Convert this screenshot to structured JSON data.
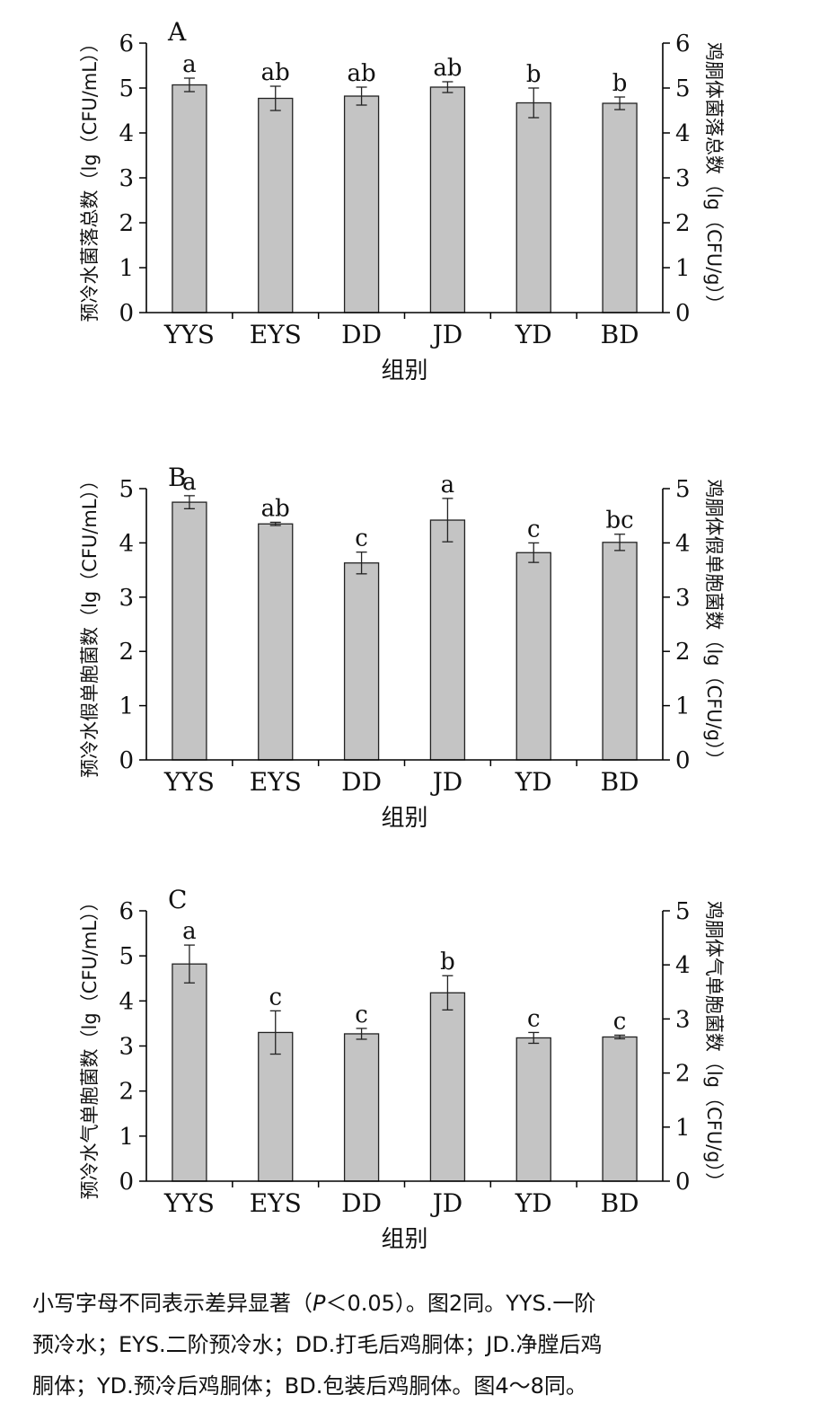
{
  "chart_data": [
    {
      "type": "bar",
      "panel_label": "A",
      "categories": [
        "YYS",
        "EYS",
        "DD",
        "JD",
        "YD",
        "BD"
      ],
      "values": [
        5.07,
        4.77,
        4.82,
        5.02,
        4.67,
        4.66
      ],
      "errors": [
        0.15,
        0.27,
        0.2,
        0.12,
        0.33,
        0.14
      ],
      "significance_letters": [
        "a",
        "ab",
        "ab",
        "ab",
        "b",
        "b"
      ],
      "xlabel": "组别",
      "ylabel_left": "预冷水菌落总数（lg（CFU/mL））",
      "ylabel_right": "鸡胴体菌落总数（lg（CFU/g））",
      "ylim_left": [
        0,
        6
      ],
      "ylim_right": [
        0,
        6
      ],
      "yticks_left": [
        "0",
        "1",
        "2",
        "3",
        "4",
        "5",
        "6"
      ],
      "yticks_right": [
        "0",
        "1",
        "2",
        "3",
        "4",
        "5",
        "6"
      ]
    },
    {
      "type": "bar",
      "panel_label": "B",
      "categories": [
        "YYS",
        "EYS",
        "DD",
        "JD",
        "YD",
        "BD"
      ],
      "values": [
        4.75,
        4.35,
        3.63,
        4.42,
        3.82,
        4.01
      ],
      "errors": [
        0.12,
        0.03,
        0.2,
        0.4,
        0.18,
        0.15
      ],
      "significance_letters": [
        "a",
        "ab",
        "c",
        "a",
        "c",
        "bc"
      ],
      "xlabel": "组别",
      "ylabel_left": "预冷水假单胞菌数（lg（CFU/mL））",
      "ylabel_right": "鸡胴体假单胞菌数（lg（CFU/g））",
      "ylim_left": [
        0,
        5
      ],
      "ylim_right": [
        0,
        5
      ],
      "yticks_left": [
        "0",
        "1",
        "2",
        "3",
        "4",
        "5"
      ],
      "yticks_right": [
        "0",
        "1",
        "2",
        "3",
        "4",
        "5"
      ]
    },
    {
      "type": "bar",
      "panel_label": "C",
      "categories": [
        "YYS",
        "EYS",
        "DD",
        "JD",
        "YD",
        "BD"
      ],
      "values": [
        4.82,
        3.3,
        3.27,
        4.18,
        3.18,
        3.2
      ],
      "errors": [
        0.42,
        0.48,
        0.12,
        0.38,
        0.12,
        0.04
      ],
      "significance_letters": [
        "a",
        "c",
        "c",
        "b",
        "c",
        "c"
      ],
      "xlabel": "组别",
      "ylabel_left": "预冷水气单胞菌数（lg（CFU/mL））",
      "ylabel_right": "鸡胴体气单胞菌数（lg（CFU/g））",
      "ylim_left": [
        0,
        6
      ],
      "ylim_right": [
        0,
        5
      ],
      "yticks_left": [
        "0",
        "1",
        "2",
        "3",
        "4",
        "5",
        "6"
      ],
      "yticks_right": [
        "0",
        "1",
        "2",
        "3",
        "4",
        "5"
      ]
    }
  ],
  "caption": {
    "line1_pre": "小写字母不同表示差异显著（",
    "line1_p": "P",
    "line1_post": "＜0.05）。图2同。YYS.一阶",
    "line2": "预冷水；EYS.二阶预冷水；DD.打毛后鸡胴体；JD.净膛后鸡",
    "line3": "胴体；YD.预冷后鸡胴体；BD.包装后鸡胴体。图4～8同。"
  },
  "colors": {
    "bar_fill": "#c4c4c4",
    "bar_stroke": "#222222",
    "axis": "#000000"
  }
}
